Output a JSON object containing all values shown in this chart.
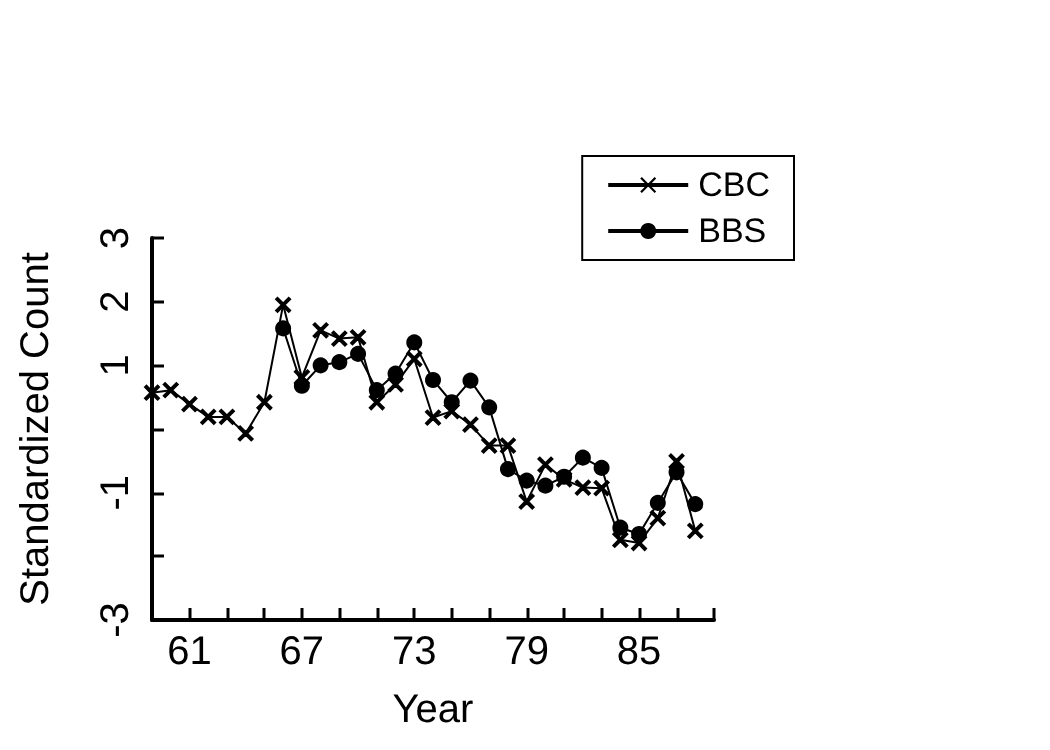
{
  "chart_data": {
    "type": "line",
    "xlabel": "Year",
    "ylabel": "Standardized Count",
    "xlim": [
      59,
      89
    ],
    "ylim": [
      -3,
      3
    ],
    "xticks": [
      {
        "value": 59,
        "label": null
      },
      61,
      {
        "value": 63,
        "label": null
      },
      {
        "value": 65,
        "label": null
      },
      67,
      {
        "value": 69,
        "label": null
      },
      {
        "value": 71,
        "label": null
      },
      73,
      {
        "value": 75,
        "label": null
      },
      {
        "value": 77,
        "label": null
      },
      79,
      {
        "value": 81,
        "label": null
      },
      {
        "value": 83,
        "label": null
      },
      85,
      {
        "value": 87,
        "label": null
      },
      {
        "value": 89,
        "label": null
      }
    ],
    "yticks": [
      -3,
      {
        "value": -2,
        "label": null
      },
      -1,
      {
        "value": 0,
        "label": null
      },
      1,
      2,
      3
    ],
    "grid": false,
    "legend": "top right",
    "line_style": "solid",
    "series": [
      {
        "name": "CBC",
        "color": "#000000",
        "marker": "cross",
        "x": [
          59,
          60,
          61,
          62,
          63,
          64,
          65,
          66,
          67,
          68,
          69,
          70,
          71,
          72,
          73,
          74,
          75,
          76,
          77,
          78,
          79,
          80,
          81,
          82,
          83,
          84,
          85,
          86,
          87,
          88
        ],
        "values": [
          0.57,
          0.61,
          0.39,
          0.19,
          0.19,
          -0.07,
          0.42,
          1.95,
          0.81,
          1.55,
          1.42,
          1.44,
          0.42,
          0.7,
          1.1,
          0.18,
          0.28,
          0.07,
          -0.26,
          -0.26,
          -1.14,
          -0.56,
          -0.79,
          -0.92,
          -0.93,
          -1.74,
          -1.79,
          -1.4,
          -0.51,
          -1.6
        ]
      },
      {
        "name": "BBS",
        "color": "#000000",
        "marker": "circle",
        "x": [
          66,
          67,
          68,
          69,
          70,
          71,
          72,
          73,
          74,
          75,
          76,
          77,
          78,
          79,
          80,
          81,
          82,
          83,
          84,
          85,
          86,
          87,
          88
        ],
        "values": [
          1.58,
          0.68,
          1.0,
          1.05,
          1.18,
          0.61,
          0.87,
          1.36,
          0.77,
          0.42,
          0.76,
          0.34,
          -0.63,
          -0.81,
          -0.89,
          -0.75,
          -0.45,
          -0.61,
          -1.55,
          -1.65,
          -1.16,
          -0.68,
          -1.18
        ]
      }
    ]
  }
}
